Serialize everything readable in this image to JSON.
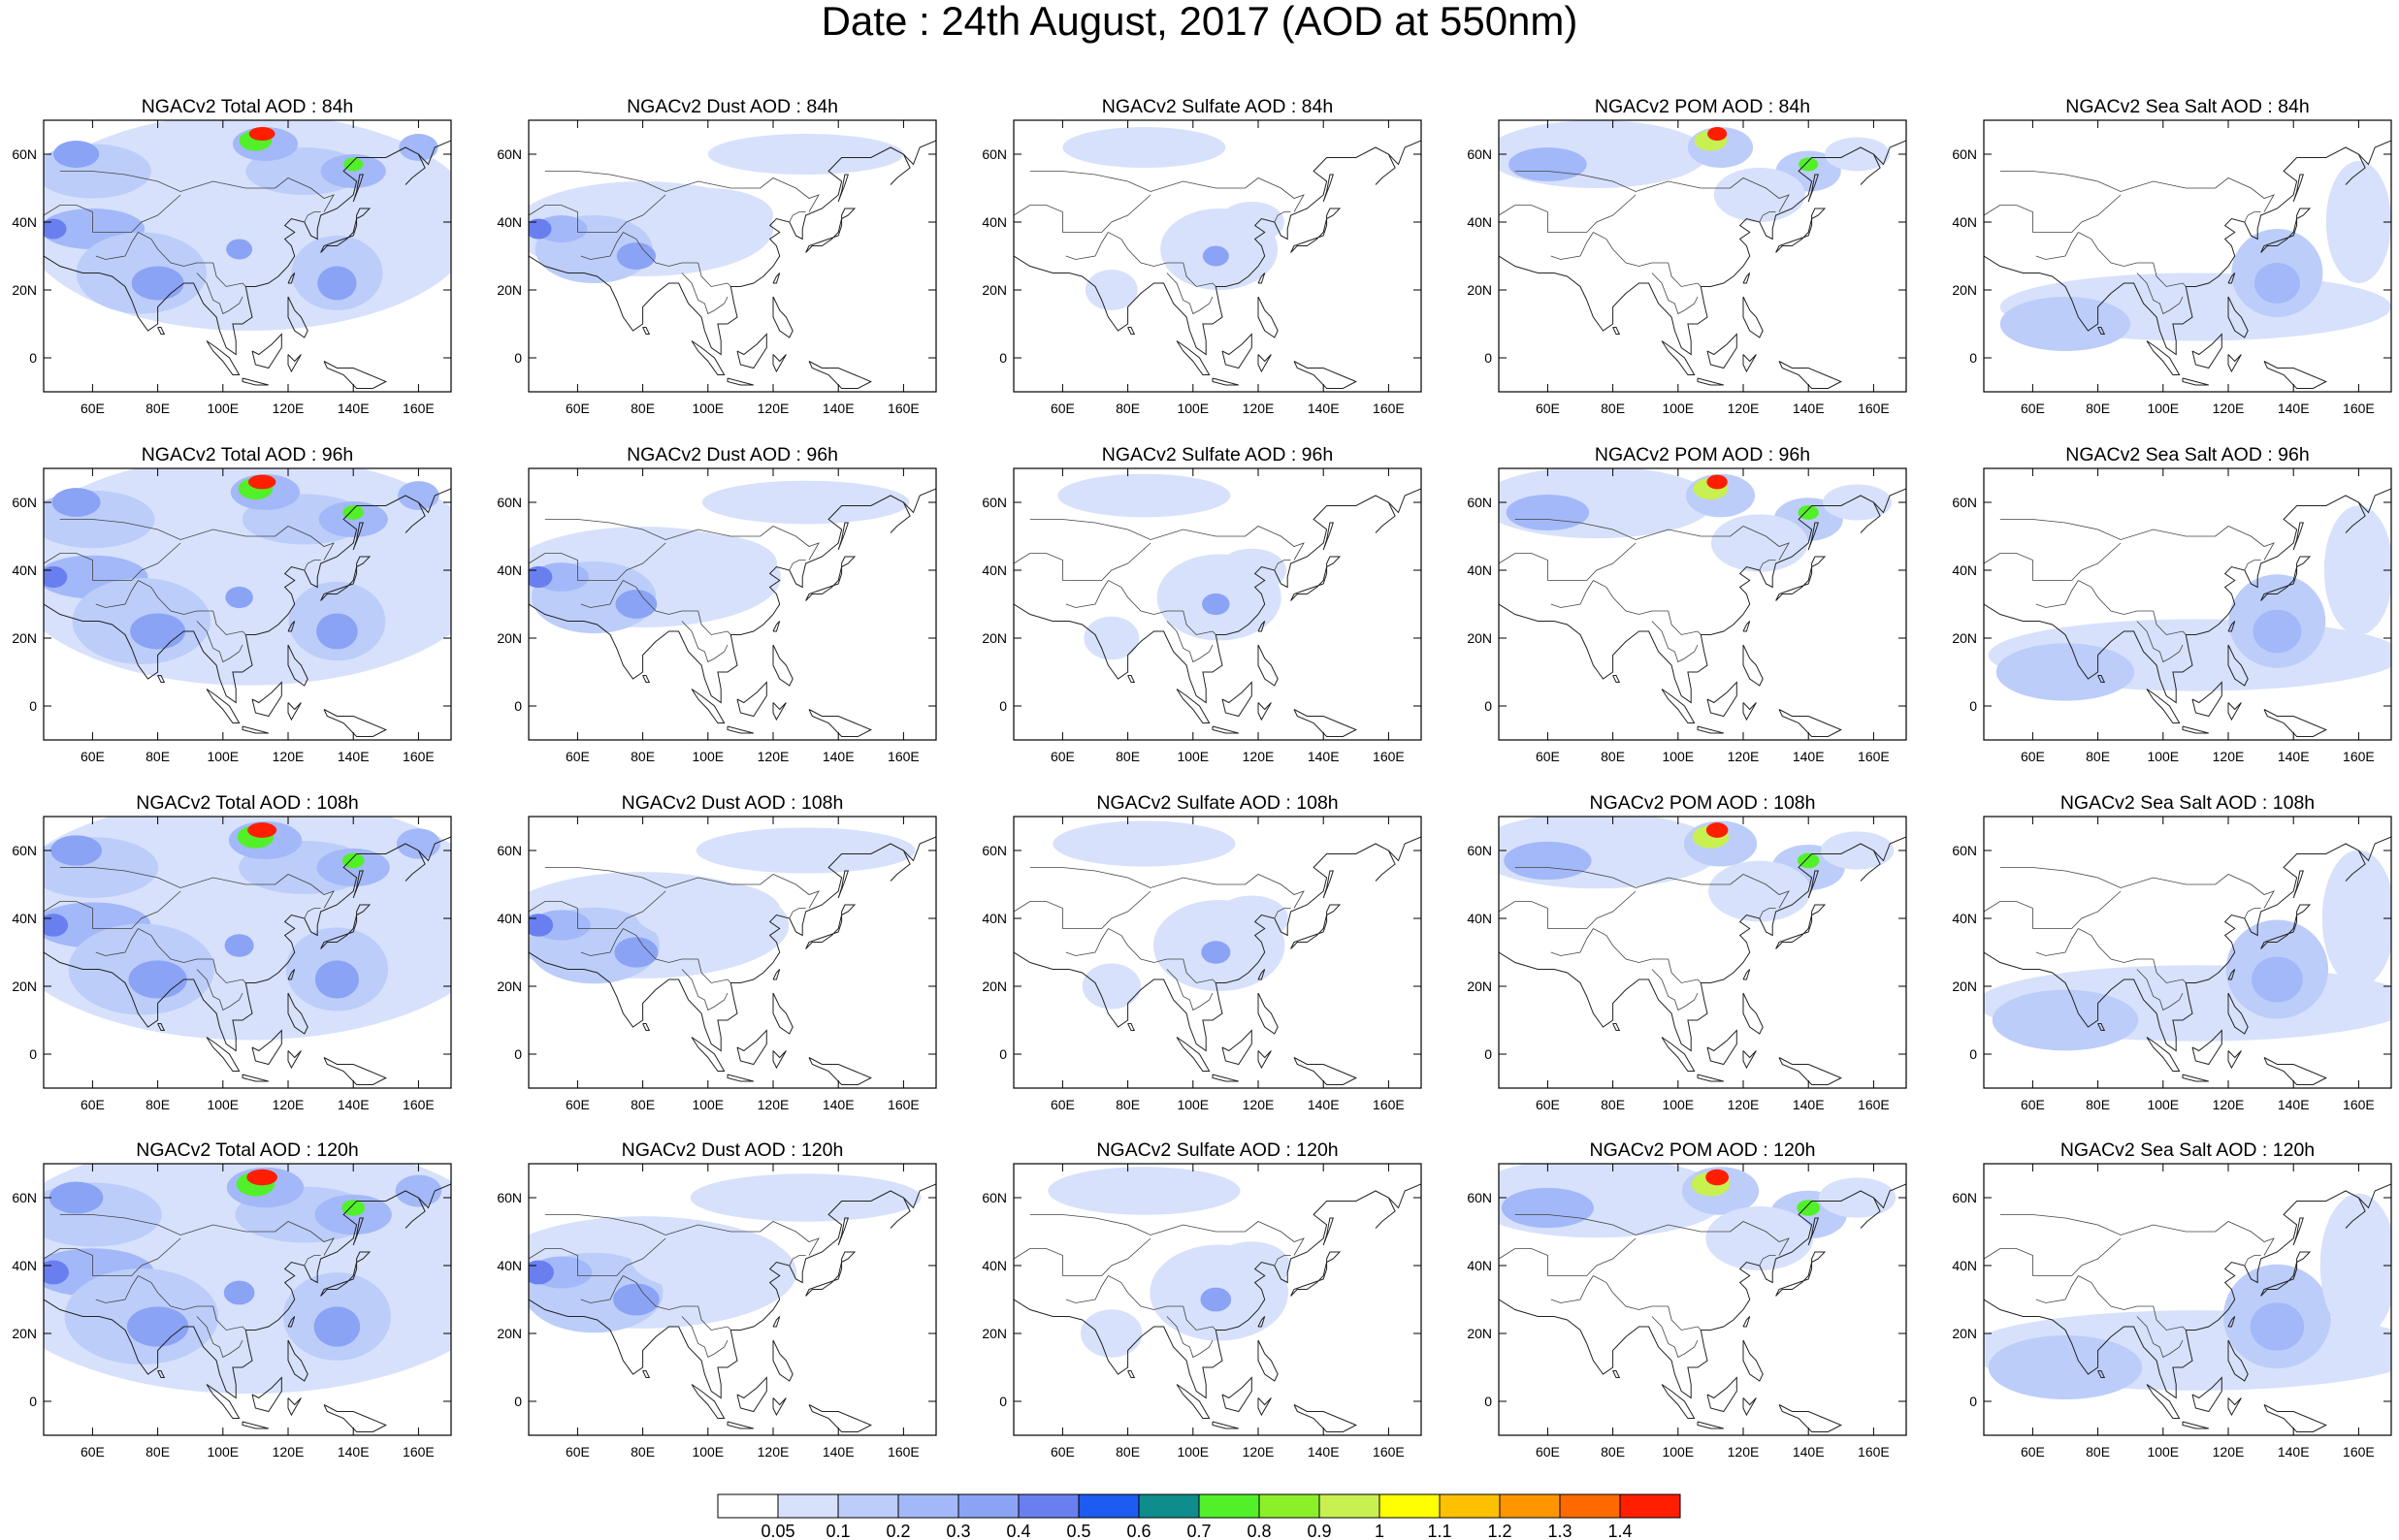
{
  "title": "Date : 24th August, 2017 (AOD at 550nm)",
  "lon_labels": [
    "60E",
    "80E",
    "100E",
    "120E",
    "140E",
    "160E"
  ],
  "lat_labels": [
    "60N",
    "40N",
    "20N",
    "0"
  ],
  "colorbar": {
    "labels": [
      "0.05",
      "0.1",
      "0.2",
      "0.3",
      "0.4",
      "0.5",
      "0.6",
      "0.7",
      "0.8",
      "0.9",
      "1",
      "1.1",
      "1.2",
      "1.3",
      "1.4"
    ],
    "colors": [
      "#ffffff",
      "#d7e1fb",
      "#bccdfa",
      "#a3b8f8",
      "#8aa3f5",
      "#6a7fef",
      "#1e5bf0",
      "#0f8c8c",
      "#52f028",
      "#8cf028",
      "#c8f050",
      "#ffff00",
      "#ffc000",
      "#ff9600",
      "#ff6a00",
      "#ff1e00"
    ]
  },
  "rows": [
    "84h",
    "96h",
    "108h",
    "120h"
  ],
  "panels": [
    [
      "NGACv2 Total AOD : 84h",
      "NGACv2 Dust AOD : 84h",
      "NGACv2 Sulfate AOD : 84h",
      "NGACv2 POM AOD : 84h",
      "NGACv2 Sea Salt AOD : 84h"
    ],
    [
      "NGACv2 Total AOD : 96h",
      "NGACv2 Dust AOD : 96h",
      "NGACv2 Sulfate AOD : 96h",
      "NGACv2 POM AOD : 96h",
      "NGACv2 Sea Salt AOD : 96h"
    ],
    [
      "NGACv2 Total AOD : 108h",
      "NGACv2 Dust AOD : 108h",
      "NGACv2 Sulfate AOD : 108h",
      "NGACv2 POM AOD : 108h",
      "NGACv2 Sea Salt AOD : 108h"
    ],
    [
      "NGACv2 Total AOD : 120h",
      "NGACv2 Dust AOD : 120h",
      "NGACv2 Sulfate AOD : 120h",
      "NGACv2 POM AOD : 120h",
      "NGACv2 Sea Salt  AOD : 120h"
    ]
  ]
}
